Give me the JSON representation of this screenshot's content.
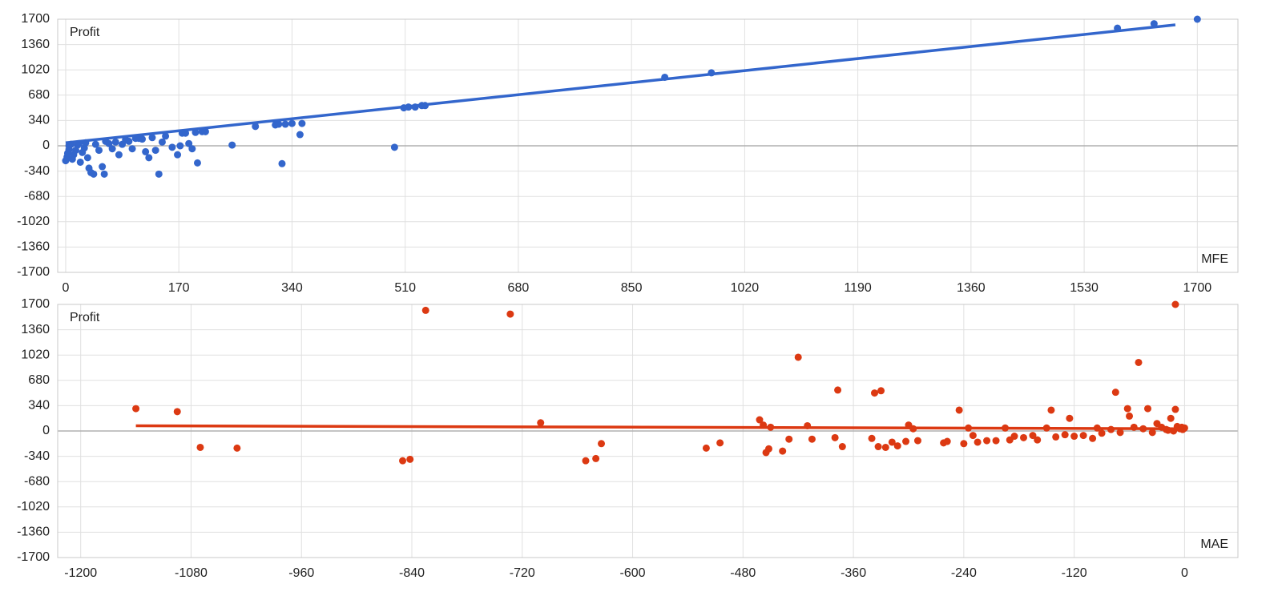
{
  "chart_data": [
    {
      "type": "scatter",
      "x_label": "MFE",
      "y_label": "Profit",
      "grid": true,
      "xlim": [
        -12,
        1761
      ],
      "ylim": [
        -1700,
        1700
      ],
      "xticks": [
        0,
        170,
        340,
        510,
        680,
        850,
        1020,
        1190,
        1360,
        1530,
        1700
      ],
      "yticks": [
        -1700,
        -1360,
        -1020,
        -680,
        -340,
        0,
        340,
        680,
        1020,
        1360,
        1700
      ],
      "series": [
        {
          "color": "#3366cc",
          "x": [
            0,
            2,
            3,
            5,
            5,
            8,
            10,
            12,
            15,
            18,
            20,
            22,
            25,
            28,
            30,
            33,
            35,
            38,
            42,
            45,
            50,
            55,
            58,
            60,
            65,
            70,
            75,
            80,
            85,
            90,
            95,
            100,
            105,
            110,
            115,
            120,
            125,
            130,
            135,
            140,
            145,
            150,
            160,
            168,
            172,
            175,
            180,
            185,
            190,
            195,
            198,
            205,
            210,
            250,
            285,
            315,
            320,
            325,
            330,
            340,
            355,
            352,
            494,
            508,
            515,
            525,
            535,
            540,
            900,
            970,
            1580,
            1635,
            1700
          ],
          "values": [
            -200,
            -150,
            -100,
            -50,
            0,
            20,
            -180,
            -120,
            -60,
            10,
            30,
            -220,
            -90,
            -30,
            40,
            -160,
            -300,
            -360,
            -380,
            20,
            -60,
            -280,
            -380,
            60,
            30,
            -40,
            50,
            -120,
            20,
            80,
            60,
            -40,
            100,
            100,
            90,
            -80,
            -160,
            110,
            -60,
            -380,
            50,
            130,
            -20,
            -120,
            0,
            170,
            170,
            30,
            -40,
            180,
            -230,
            190,
            190,
            10,
            260,
            280,
            290,
            -240,
            290,
            300,
            300,
            150,
            -20,
            510,
            520,
            520,
            540,
            540,
            920,
            980,
            1580,
            1640,
            1700
          ]
        }
      ],
      "trendline": {
        "color": "#3366cc",
        "x": [
          0,
          1667
        ],
        "values": [
          40,
          1625
        ]
      }
    },
    {
      "type": "scatter",
      "x_label": "MAE",
      "y_label": "Profit",
      "grid": true,
      "xlim": [
        -1225,
        58
      ],
      "ylim": [
        -1700,
        1700
      ],
      "xticks": [
        -1200,
        -1080,
        -960,
        -840,
        -720,
        -600,
        -480,
        -360,
        -240,
        -120,
        0
      ],
      "yticks": [
        -1700,
        -1360,
        -1020,
        -680,
        -340,
        0,
        340,
        680,
        1020,
        1360,
        1700
      ],
      "series": [
        {
          "color": "#dc3912",
          "x": [
            -1140,
            -1095,
            -1070,
            -1030,
            -850,
            -842,
            -825,
            -733,
            -700,
            -651,
            -640,
            -634,
            -520,
            -505,
            -462,
            -458,
            -455,
            -452,
            -450,
            -437,
            -430,
            -420,
            -410,
            -405,
            -380,
            -377,
            -372,
            -340,
            -337,
            -333,
            -330,
            -325,
            -318,
            -312,
            -303,
            -300,
            -295,
            -290,
            -262,
            -258,
            -245,
            -240,
            -235,
            -230,
            -225,
            -215,
            -205,
            -195,
            -190,
            -185,
            -175,
            -165,
            -160,
            -150,
            -145,
            -140,
            -130,
            -125,
            -120,
            -110,
            -100,
            -95,
            -90,
            -80,
            -75,
            -70,
            -62,
            -60,
            -55,
            -50,
            -45,
            -40,
            -35,
            -30,
            -25,
            -20,
            -15,
            -10,
            -8,
            -5,
            -3,
            0,
            -10,
            -2,
            -12,
            -18
          ],
          "values": [
            300,
            260,
            -220,
            -230,
            -400,
            -380,
            1620,
            1570,
            110,
            -400,
            -370,
            -170,
            -230,
            -160,
            150,
            80,
            -290,
            -240,
            50,
            -270,
            -110,
            990,
            70,
            -110,
            -90,
            550,
            -210,
            -100,
            510,
            -210,
            540,
            -220,
            -150,
            -200,
            -140,
            80,
            30,
            -130,
            -160,
            -140,
            280,
            -170,
            40,
            -60,
            -150,
            -130,
            -130,
            40,
            -120,
            -70,
            -90,
            -60,
            -120,
            40,
            280,
            -80,
            -50,
            170,
            -70,
            -60,
            -100,
            40,
            -30,
            20,
            520,
            -20,
            300,
            200,
            50,
            920,
            30,
            300,
            -20,
            100,
            50,
            20,
            170,
            290,
            60,
            30,
            50,
            40,
            1700,
            20,
            0,
            10
          ]
        }
      ],
      "trendline": {
        "color": "#dc3912",
        "x": [
          -1140,
          0
        ],
        "values": [
          70,
          30
        ]
      }
    }
  ]
}
